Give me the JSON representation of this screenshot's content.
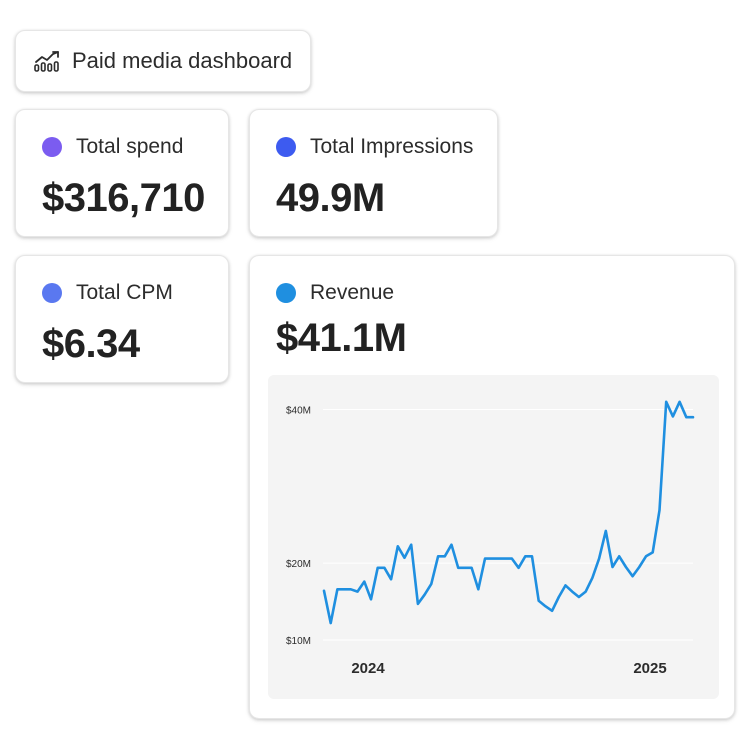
{
  "dashboard": {
    "title": "Paid media dashboard",
    "title_icon": "chart-bars-icon"
  },
  "metrics": {
    "spend": {
      "label": "Total spend",
      "value": "$316,710",
      "dot_color": "#7b5cf0"
    },
    "impressions": {
      "label": "Total Impressions",
      "value": "49.9M",
      "dot_color": "#3d5bf0"
    },
    "cpm": {
      "label": "Total CPM",
      "value": "$6.34",
      "dot_color": "#5a78f0"
    },
    "revenue": {
      "label": "Revenue",
      "value": "$41.1M",
      "dot_color": "#1f8fe0"
    }
  },
  "chart_data": {
    "type": "line",
    "title": "",
    "xlabel": "",
    "ylabel": "",
    "line_color": "#1f8fe0",
    "grid": true,
    "y_ticks": [
      {
        "value": 10,
        "label": "$10M"
      },
      {
        "value": 20,
        "label": "$20M"
      },
      {
        "value": 40,
        "label": "$40M"
      }
    ],
    "x_labels": [
      "2024",
      "2025"
    ],
    "series": [
      {
        "values": [
          16.4,
          12.2,
          16.6,
          16.6,
          16.6,
          16.3,
          17.6,
          15.3,
          19.4,
          19.4,
          17.9,
          22.2,
          20.7,
          22.4,
          14.7,
          15.9,
          17.3,
          20.9,
          20.9,
          22.4,
          19.4,
          19.4,
          19.4,
          16.6,
          20.6,
          20.6,
          20.6,
          20.6,
          20.6,
          19.4,
          20.9,
          20.9,
          15.1,
          14.4,
          13.8,
          15.6,
          17.1,
          16.3,
          15.6,
          16.3,
          18.1,
          20.6,
          24.2,
          19.5,
          20.9,
          19.5,
          18.3,
          19.5,
          20.9,
          21.4,
          26.9,
          41.0,
          39.1,
          41.0,
          39.0,
          39.0
        ]
      }
    ]
  }
}
